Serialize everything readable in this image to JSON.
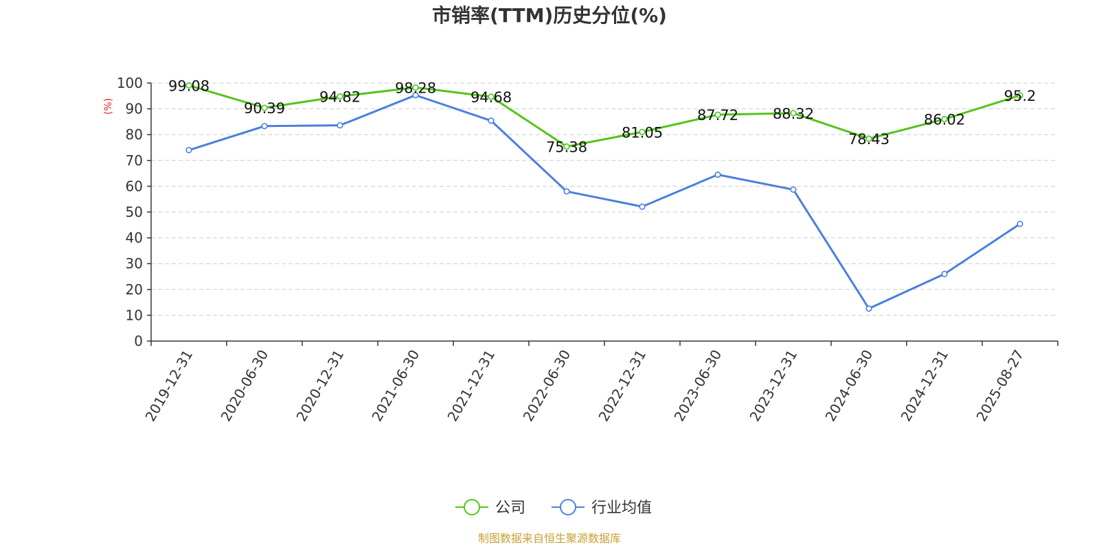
{
  "chart_data": {
    "type": "line",
    "title": "市销率(TTM)历史分位(%)",
    "ylabel": "(%)",
    "xlabel": "",
    "ylim": [
      0,
      100
    ],
    "yticks": [
      "0",
      "10",
      "20",
      "30",
      "40",
      "50",
      "60",
      "70",
      "80",
      "90",
      "100"
    ],
    "categories": [
      "2019-12-31",
      "2020-06-30",
      "2020-12-31",
      "2021-06-30",
      "2021-12-31",
      "2022-06-30",
      "2022-12-31",
      "2023-06-30",
      "2023-12-31",
      "2024-06-30",
      "2024-12-31",
      "2025-08-27"
    ],
    "series": [
      {
        "name": "公司",
        "color": "#52c41a",
        "values": [
          99.08,
          90.39,
          94.82,
          98.28,
          94.68,
          75.38,
          81.05,
          87.72,
          88.32,
          78.43,
          86.02,
          95.2
        ],
        "labels": [
          "99.08",
          "90.39",
          "94.82",
          "98.28",
          "94.68",
          "75.38",
          "81.05",
          "87.72",
          "88.32",
          "78.43",
          "86.02",
          "95.2"
        ]
      },
      {
        "name": "行业均值",
        "color": "#4a7fdc",
        "values": [
          74.0,
          83.3,
          83.6,
          95.3,
          85.4,
          58.0,
          52.1,
          64.5,
          58.7,
          12.6,
          26.0,
          45.4
        ]
      }
    ],
    "grid": true,
    "legend_position": "bottom-center",
    "source": "制图数据来自恒生聚源数据库"
  }
}
